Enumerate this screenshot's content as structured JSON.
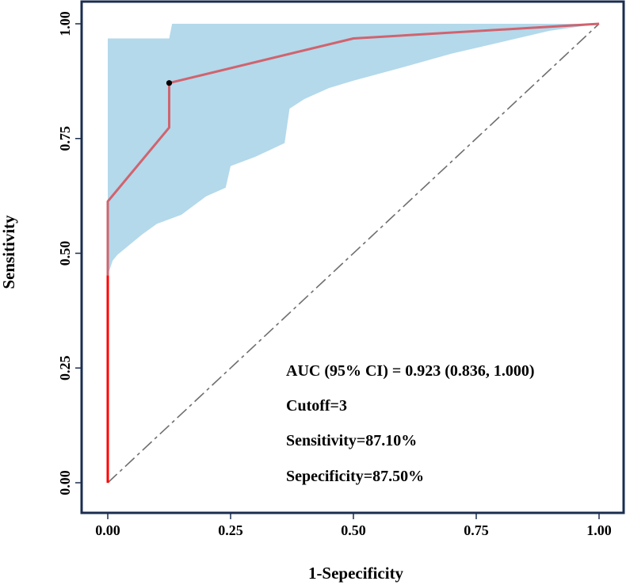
{
  "chart_data": {
    "type": "line",
    "title": "",
    "xlabel": "1-Sepecificity",
    "ylabel": "Sensitivity",
    "xlim": [
      0,
      1
    ],
    "ylim": [
      0,
      1
    ],
    "x_ticks": [
      "0.00",
      "0.25",
      "0.50",
      "0.75",
      "1.00"
    ],
    "y_ticks": [
      "0.00",
      "0.25",
      "0.50",
      "0.75",
      "1.00"
    ],
    "series": [
      {
        "name": "ROC curve",
        "x": [
          0,
          0,
          0,
          0.125,
          0.125,
          0.5,
          1.0
        ],
        "y": [
          0,
          0.452,
          0.613,
          0.774,
          0.871,
          0.968,
          1.0
        ]
      },
      {
        "name": "Reference line",
        "x": [
          0,
          1
        ],
        "y": [
          0,
          1
        ]
      }
    ],
    "confidence_band": {
      "upper": [
        [
          0,
          0.968
        ],
        [
          0.125,
          0.968
        ],
        [
          0.131,
          1.0
        ],
        [
          1.0,
          1.0
        ]
      ],
      "lower": [
        [
          0,
          0.452
        ],
        [
          0.01,
          0.484
        ],
        [
          0.02,
          0.497
        ],
        [
          0.07,
          0.541
        ],
        [
          0.1,
          0.564
        ],
        [
          0.15,
          0.584
        ],
        [
          0.2,
          0.624
        ],
        [
          0.24,
          0.643
        ],
        [
          0.25,
          0.69
        ],
        [
          0.3,
          0.71
        ],
        [
          0.33,
          0.725
        ],
        [
          0.36,
          0.74
        ],
        [
          0.37,
          0.815
        ],
        [
          0.4,
          0.836
        ],
        [
          0.45,
          0.86
        ],
        [
          0.5,
          0.876
        ],
        [
          0.6,
          0.905
        ],
        [
          0.7,
          0.935
        ],
        [
          0.8,
          0.96
        ],
        [
          0.9,
          0.985
        ],
        [
          1.0,
          1.0
        ]
      ]
    },
    "cutoff_point": {
      "x": 0.125,
      "y": 0.871
    },
    "annotations": {
      "auc": "AUC (95% CI) = 0.923 (0.836, 1.000)",
      "cutoff": "Cutoff=3",
      "sensitivity": "Sensitivity=87.10%",
      "specificity": "Sepecificity=87.50%"
    },
    "colors": {
      "band": "#b3d9eb",
      "curve": "#d1636e",
      "curve_start": "#ff0000",
      "reference": "#6e6e6e",
      "frame": "#1b2d4f",
      "point": "#000000"
    }
  }
}
